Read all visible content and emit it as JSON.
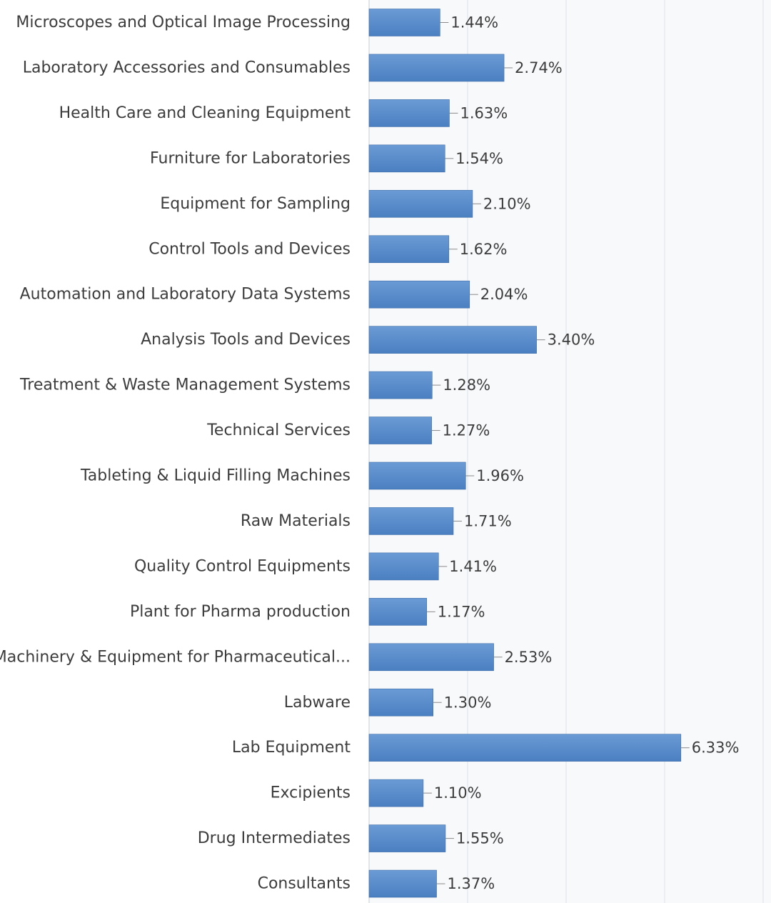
{
  "chart_data": {
    "type": "bar",
    "orientation": "horizontal",
    "title": "",
    "xlabel": "",
    "ylabel": "",
    "xlim": [
      0,
      8
    ],
    "grid": true,
    "value_format": "percent",
    "bar_color": "#4a7fc1",
    "bar_color_light": "#6b9bd5",
    "plot_background": "#f8f9fb",
    "categories": [
      "Microscopes and Optical Image Processing",
      "Laboratory Accessories and Consumables",
      "Health Care and Cleaning Equipment",
      "Furniture for Laboratories",
      "Equipment for Sampling",
      "Control Tools and Devices",
      "Automation and Laboratory Data Systems",
      "Analysis Tools and Devices",
      "Treatment & Waste Management Systems",
      "Technical Services",
      "Tableting & Liquid Filling Machines",
      "Raw Materials",
      "Quality Control Equipments",
      "Plant for Pharma production",
      "Machinery & Equipment for Pharmaceutical...",
      "Labware",
      "Lab Equipment",
      "Excipients",
      "Drug Intermediates",
      "Consultants"
    ],
    "values": [
      1.44,
      2.74,
      1.63,
      1.54,
      2.1,
      1.62,
      2.04,
      3.4,
      1.28,
      1.27,
      1.96,
      1.71,
      1.41,
      1.17,
      2.53,
      1.3,
      6.33,
      1.1,
      1.55,
      1.37
    ],
    "data_labels": [
      "1.44%",
      "2.74%",
      "1.63%",
      "1.54%",
      "2.10%",
      "1.62%",
      "2.04%",
      "3.40%",
      "1.28%",
      "1.27%",
      "1.96%",
      "1.71%",
      "1.41%",
      "1.17%",
      "2.53%",
      "1.30%",
      "6.33%",
      "1.10%",
      "1.55%",
      "1.37%"
    ]
  }
}
